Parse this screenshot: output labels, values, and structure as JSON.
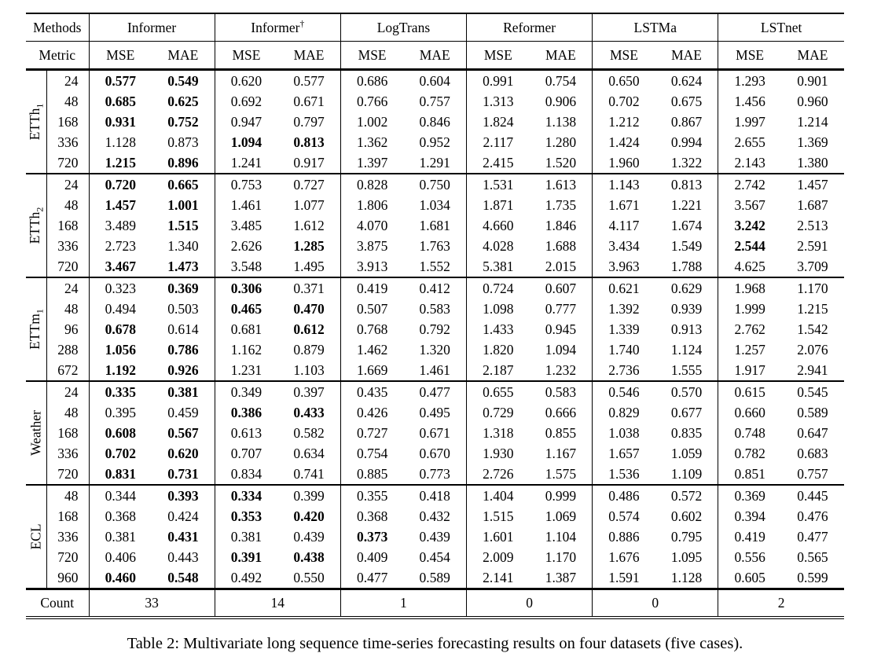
{
  "caption": "Table 2: Multivariate long sequence time-series forecasting results on four datasets (five cases).",
  "table": {
    "header": {
      "methods_label": "Methods",
      "metric_label": "Metric",
      "methods": [
        {
          "name": "Informer",
          "sup": ""
        },
        {
          "name": "Informer",
          "sup": "†"
        },
        {
          "name": "LogTrans",
          "sup": ""
        },
        {
          "name": "Reformer",
          "sup": ""
        },
        {
          "name": "LSTMa",
          "sup": ""
        },
        {
          "name": "LSTnet",
          "sup": ""
        }
      ],
      "metric_cols": [
        "MSE",
        "MAE"
      ]
    },
    "groups": [
      {
        "label_base": "ETTh",
        "label_sub": "1",
        "rows": [
          {
            "h": "24",
            "v": [
              "0.577",
              "0.549",
              "0.620",
              "0.577",
              "0.686",
              "0.604",
              "0.991",
              "0.754",
              "0.650",
              "0.624",
              "1.293",
              "0.901"
            ],
            "b": [
              0,
              1
            ]
          },
          {
            "h": "48",
            "v": [
              "0.685",
              "0.625",
              "0.692",
              "0.671",
              "0.766",
              "0.757",
              "1.313",
              "0.906",
              "0.702",
              "0.675",
              "1.456",
              "0.960"
            ],
            "b": [
              0,
              1
            ]
          },
          {
            "h": "168",
            "v": [
              "0.931",
              "0.752",
              "0.947",
              "0.797",
              "1.002",
              "0.846",
              "1.824",
              "1.138",
              "1.212",
              "0.867",
              "1.997",
              "1.214"
            ],
            "b": [
              0,
              1
            ]
          },
          {
            "h": "336",
            "v": [
              "1.128",
              "0.873",
              "1.094",
              "0.813",
              "1.362",
              "0.952",
              "2.117",
              "1.280",
              "1.424",
              "0.994",
              "2.655",
              "1.369"
            ],
            "b": [
              2,
              3
            ]
          },
          {
            "h": "720",
            "v": [
              "1.215",
              "0.896",
              "1.241",
              "0.917",
              "1.397",
              "1.291",
              "2.415",
              "1.520",
              "1.960",
              "1.322",
              "2.143",
              "1.380"
            ],
            "b": [
              0,
              1
            ]
          }
        ]
      },
      {
        "label_base": "ETTh",
        "label_sub": "2",
        "rows": [
          {
            "h": "24",
            "v": [
              "0.720",
              "0.665",
              "0.753",
              "0.727",
              "0.828",
              "0.750",
              "1.531",
              "1.613",
              "1.143",
              "0.813",
              "2.742",
              "1.457"
            ],
            "b": [
              0,
              1
            ]
          },
          {
            "h": "48",
            "v": [
              "1.457",
              "1.001",
              "1.461",
              "1.077",
              "1.806",
              "1.034",
              "1.871",
              "1.735",
              "1.671",
              "1.221",
              "3.567",
              "1.687"
            ],
            "b": [
              0,
              1
            ]
          },
          {
            "h": "168",
            "v": [
              "3.489",
              "1.515",
              "3.485",
              "1.612",
              "4.070",
              "1.681",
              "4.660",
              "1.846",
              "4.117",
              "1.674",
              "3.242",
              "2.513"
            ],
            "b": [
              1,
              10
            ]
          },
          {
            "h": "336",
            "v": [
              "2.723",
              "1.340",
              "2.626",
              "1.285",
              "3.875",
              "1.763",
              "4.028",
              "1.688",
              "3.434",
              "1.549",
              "2.544",
              "2.591"
            ],
            "b": [
              3,
              10
            ]
          },
          {
            "h": "720",
            "v": [
              "3.467",
              "1.473",
              "3.548",
              "1.495",
              "3.913",
              "1.552",
              "5.381",
              "2.015",
              "3.963",
              "1.788",
              "4.625",
              "3.709"
            ],
            "b": [
              0,
              1
            ]
          }
        ]
      },
      {
        "label_base": "ETTm",
        "label_sub": "1",
        "rows": [
          {
            "h": "24",
            "v": [
              "0.323",
              "0.369",
              "0.306",
              "0.371",
              "0.419",
              "0.412",
              "0.724",
              "0.607",
              "0.621",
              "0.629",
              "1.968",
              "1.170"
            ],
            "b": [
              1,
              2
            ]
          },
          {
            "h": "48",
            "v": [
              "0.494",
              "0.503",
              "0.465",
              "0.470",
              "0.507",
              "0.583",
              "1.098",
              "0.777",
              "1.392",
              "0.939",
              "1.999",
              "1.215"
            ],
            "b": [
              2,
              3
            ]
          },
          {
            "h": "96",
            "v": [
              "0.678",
              "0.614",
              "0.681",
              "0.612",
              "0.768",
              "0.792",
              "1.433",
              "0.945",
              "1.339",
              "0.913",
              "2.762",
              "1.542"
            ],
            "b": [
              0,
              3
            ]
          },
          {
            "h": "288",
            "v": [
              "1.056",
              "0.786",
              "1.162",
              "0.879",
              "1.462",
              "1.320",
              "1.820",
              "1.094",
              "1.740",
              "1.124",
              "1.257",
              "2.076"
            ],
            "b": [
              0,
              1
            ]
          },
          {
            "h": "672",
            "v": [
              "1.192",
              "0.926",
              "1.231",
              "1.103",
              "1.669",
              "1.461",
              "2.187",
              "1.232",
              "2.736",
              "1.555",
              "1.917",
              "2.941"
            ],
            "b": [
              0,
              1
            ]
          }
        ]
      },
      {
        "label_base": "Weather",
        "label_sub": "",
        "rows": [
          {
            "h": "24",
            "v": [
              "0.335",
              "0.381",
              "0.349",
              "0.397",
              "0.435",
              "0.477",
              "0.655",
              "0.583",
              "0.546",
              "0.570",
              "0.615",
              "0.545"
            ],
            "b": [
              0,
              1
            ]
          },
          {
            "h": "48",
            "v": [
              "0.395",
              "0.459",
              "0.386",
              "0.433",
              "0.426",
              "0.495",
              "0.729",
              "0.666",
              "0.829",
              "0.677",
              "0.660",
              "0.589"
            ],
            "b": [
              2,
              3
            ]
          },
          {
            "h": "168",
            "v": [
              "0.608",
              "0.567",
              "0.613",
              "0.582",
              "0.727",
              "0.671",
              "1.318",
              "0.855",
              "1.038",
              "0.835",
              "0.748",
              "0.647"
            ],
            "b": [
              0,
              1
            ]
          },
          {
            "h": "336",
            "v": [
              "0.702",
              "0.620",
              "0.707",
              "0.634",
              "0.754",
              "0.670",
              "1.930",
              "1.167",
              "1.657",
              "1.059",
              "0.782",
              "0.683"
            ],
            "b": [
              0,
              1
            ]
          },
          {
            "h": "720",
            "v": [
              "0.831",
              "0.731",
              "0.834",
              "0.741",
              "0.885",
              "0.773",
              "2.726",
              "1.575",
              "1.536",
              "1.109",
              "0.851",
              "0.757"
            ],
            "b": [
              0,
              1
            ]
          }
        ]
      },
      {
        "label_base": "ECL",
        "label_sub": "",
        "rows": [
          {
            "h": "48",
            "v": [
              "0.344",
              "0.393",
              "0.334",
              "0.399",
              "0.355",
              "0.418",
              "1.404",
              "0.999",
              "0.486",
              "0.572",
              "0.369",
              "0.445"
            ],
            "b": [
              1,
              2
            ]
          },
          {
            "h": "168",
            "v": [
              "0.368",
              "0.424",
              "0.353",
              "0.420",
              "0.368",
              "0.432",
              "1.515",
              "1.069",
              "0.574",
              "0.602",
              "0.394",
              "0.476"
            ],
            "b": [
              2,
              3
            ]
          },
          {
            "h": "336",
            "v": [
              "0.381",
              "0.431",
              "0.381",
              "0.439",
              "0.373",
              "0.439",
              "1.601",
              "1.104",
              "0.886",
              "0.795",
              "0.419",
              "0.477"
            ],
            "b": [
              1,
              4
            ]
          },
          {
            "h": "720",
            "v": [
              "0.406",
              "0.443",
              "0.391",
              "0.438",
              "0.409",
              "0.454",
              "2.009",
              "1.170",
              "1.676",
              "1.095",
              "0.556",
              "0.565"
            ],
            "b": [
              2,
              3
            ]
          },
          {
            "h": "960",
            "v": [
              "0.460",
              "0.548",
              "0.492",
              "0.550",
              "0.477",
              "0.589",
              "2.141",
              "1.387",
              "1.591",
              "1.128",
              "0.605",
              "0.599"
            ],
            "b": [
              0,
              1
            ]
          }
        ]
      }
    ],
    "footer": {
      "label": "Count",
      "counts": [
        "33",
        "14",
        "1",
        "0",
        "0",
        "2"
      ]
    }
  }
}
